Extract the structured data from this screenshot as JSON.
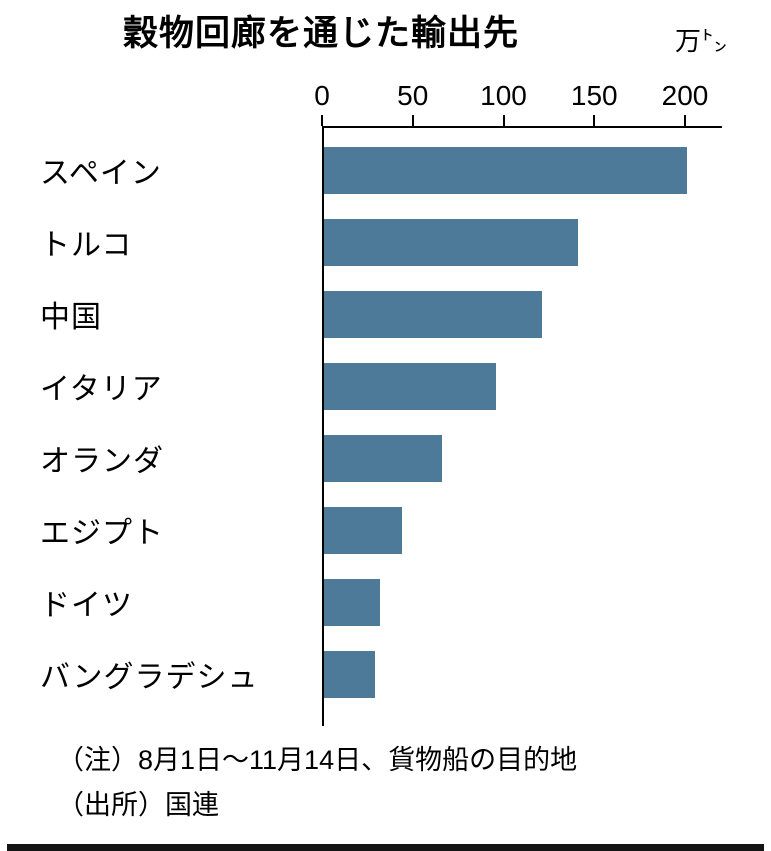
{
  "header": {
    "title": "穀物回廊を通じた輸出先",
    "unit": "万㌧"
  },
  "chart_data": {
    "type": "bar",
    "orientation": "horizontal",
    "title": "穀物回廊を通じた輸出先",
    "unit_label": "万㌧",
    "categories": [
      "スペイン",
      "トルコ",
      "中国",
      "イタリア",
      "オランダ",
      "エジプト",
      "ドイツ",
      "バングラデシュ"
    ],
    "values": [
      200,
      140,
      120,
      95,
      65,
      43,
      31,
      28
    ],
    "x_ticks": [
      0,
      50,
      100,
      150,
      200
    ],
    "xlim": [
      0,
      220
    ],
    "grid": false,
    "legend": "none",
    "bar_color": "#4d7a99",
    "axis_color": "#000000"
  },
  "notes": {
    "line1": "（注）8月1日～11月14日、貨物船の目的地",
    "line2": "（出所）国連"
  }
}
